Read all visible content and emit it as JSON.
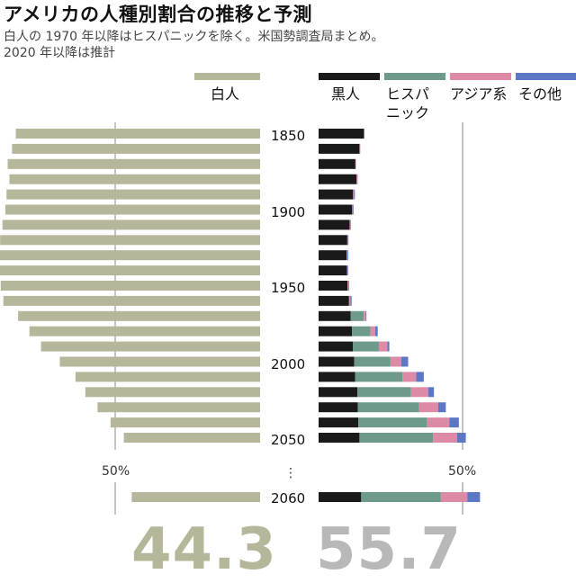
{
  "header": {
    "title": "アメリカの人種別割合の推移と予測",
    "subtitle_line1": "白人の 1970 年以降はヒスパニックを除く。米国勢調査局まとめ。",
    "subtitle_line2": "2020 年以降は推計"
  },
  "colors": {
    "white": "#b6b69a",
    "black": "#1a1a1a",
    "hispanic": "#6e9a8c",
    "asian": "#dd8aa6",
    "other": "#5c78c4",
    "axis": "#888888",
    "big_white": "#b6b69a",
    "big_nonwhite": "#b8b8b8"
  },
  "legend": {
    "white": "白人",
    "black": "黒人",
    "hispanic_line1": "ヒスパ",
    "hispanic_line2": "ニック",
    "asian": "アジア系",
    "other": "その他"
  },
  "axis": {
    "left_50": "50%",
    "right_50": "50%",
    "ellipsis": "⋮"
  },
  "big_numbers": {
    "white": "44.3",
    "nonwhite": "55.7"
  },
  "chart_data": {
    "type": "bar",
    "orientation": "horizontal",
    "year_labels": {
      "1850": "1850",
      "1900": "1900",
      "1950": "1950",
      "2000": "2000",
      "2050": "2050",
      "2060": "2060"
    },
    "xlim": [
      0,
      60
    ],
    "rows": [
      {
        "year": 1850,
        "white": 84.3,
        "black": 15.7,
        "hispanic": 0,
        "asian": 0,
        "other": 0
      },
      {
        "year": 1860,
        "white": 85.6,
        "black": 14.1,
        "hispanic": 0,
        "asian": 0.3,
        "other": 0
      },
      {
        "year": 1870,
        "white": 87.1,
        "black": 12.7,
        "hispanic": 0,
        "asian": 0.2,
        "other": 0
      },
      {
        "year": 1880,
        "white": 86.5,
        "black": 13.1,
        "hispanic": 0,
        "asian": 0.3,
        "other": 0.1
      },
      {
        "year": 1890,
        "white": 87.5,
        "black": 11.9,
        "hispanic": 0,
        "asian": 0.3,
        "other": 0.3
      },
      {
        "year": 1900,
        "white": 87.9,
        "black": 11.6,
        "hispanic": 0,
        "asian": 0.3,
        "other": 0.2
      },
      {
        "year": 1910,
        "white": 88.9,
        "black": 10.7,
        "hispanic": 0,
        "asian": 0.2,
        "other": 0.2
      },
      {
        "year": 1920,
        "white": 89.7,
        "black": 9.9,
        "hispanic": 0,
        "asian": 0.2,
        "other": 0.2
      },
      {
        "year": 1930,
        "white": 89.8,
        "black": 9.7,
        "hispanic": 0,
        "asian": 0.2,
        "other": 0.3
      },
      {
        "year": 1940,
        "white": 89.8,
        "black": 9.8,
        "hispanic": 0,
        "asian": 0.2,
        "other": 0.2
      },
      {
        "year": 1950,
        "white": 89.5,
        "black": 10.0,
        "hispanic": 0,
        "asian": 0.2,
        "other": 0.3
      },
      {
        "year": 1960,
        "white": 88.6,
        "black": 10.5,
        "hispanic": 0,
        "asian": 0.5,
        "other": 0.4
      },
      {
        "year": 1970,
        "white": 83.5,
        "black": 11.1,
        "hispanic": 4.5,
        "asian": 0.7,
        "other": 0.2
      },
      {
        "year": 1980,
        "white": 79.6,
        "black": 11.5,
        "hispanic": 6.4,
        "asian": 1.6,
        "other": 0.9
      },
      {
        "year": 1990,
        "white": 75.6,
        "black": 11.8,
        "hispanic": 9.0,
        "asian": 2.9,
        "other": 0.7
      },
      {
        "year": 2000,
        "white": 69.1,
        "black": 12.3,
        "hispanic": 12.5,
        "asian": 3.7,
        "other": 2.4
      },
      {
        "year": 2010,
        "white": 63.7,
        "black": 12.6,
        "hispanic": 16.3,
        "asian": 4.8,
        "other": 2.6
      },
      {
        "year": 2020,
        "white": 60.3,
        "black": 13.4,
        "hispanic": 18.5,
        "asian": 5.9,
        "other": 2.0
      },
      {
        "year": 2030,
        "white": 56.1,
        "black": 13.5,
        "hispanic": 21.1,
        "asian": 6.7,
        "other": 2.6
      },
      {
        "year": 2040,
        "white": 51.6,
        "black": 13.7,
        "hispanic": 23.8,
        "asian": 7.6,
        "other": 3.3
      },
      {
        "year": 2050,
        "white": 47.0,
        "black": 14.1,
        "hispanic": 25.4,
        "asian": 8.3,
        "other": 3.0
      },
      {
        "year": 2060,
        "white": 44.3,
        "black": 14.7,
        "hispanic": 27.5,
        "asian": 9.1,
        "other": 4.4
      }
    ]
  }
}
